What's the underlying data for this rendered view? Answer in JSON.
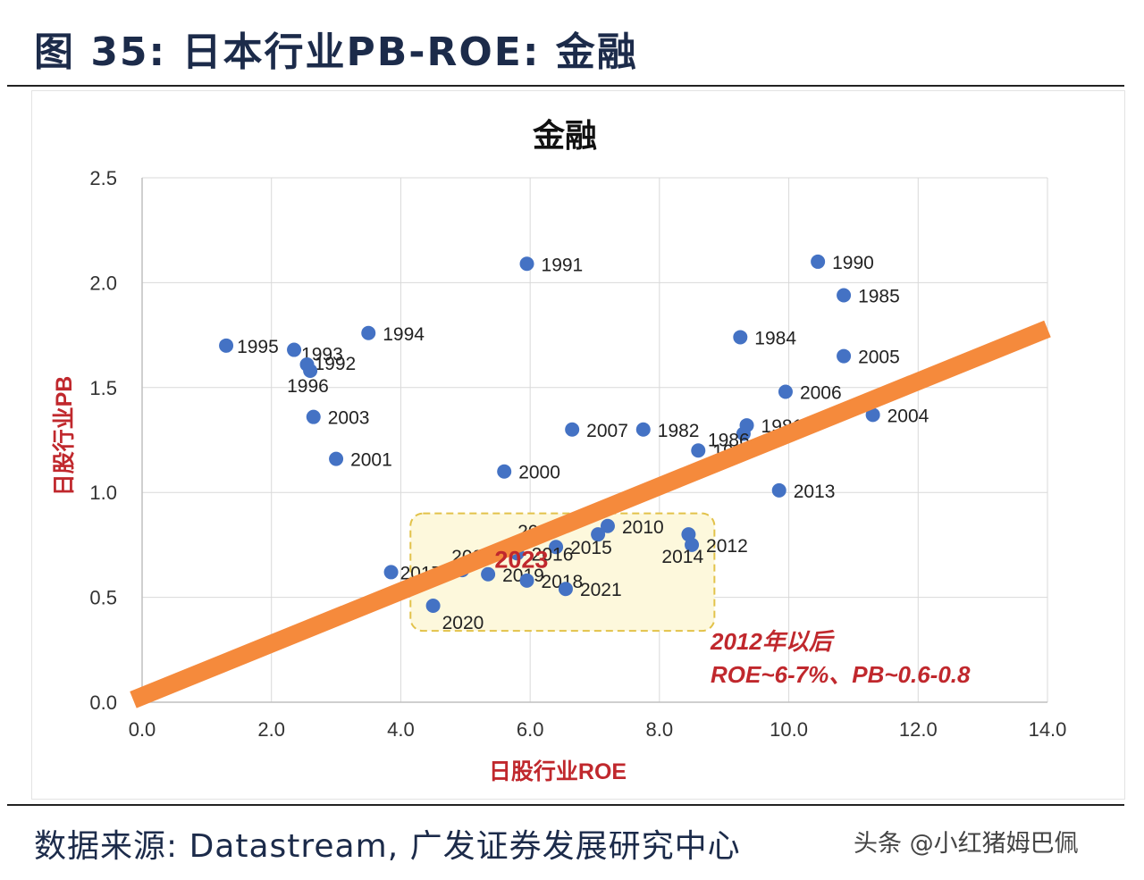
{
  "figure_title": "图  35:  日本行业PB-ROE:  金融",
  "source_text": "数据来源:  Datastream,  广发证券发展研究中心",
  "watermark_text": "头条 @小红猪姆巴佩",
  "colors": {
    "point": "#4472c4",
    "trend": "#f58a3c",
    "highlight_border": "#e2c24a",
    "highlight_fill": "#fdf8dc",
    "annotation": "#c0282d",
    "axis_label": "#c0282d",
    "grid": "#d9d9d9"
  },
  "chart_data": {
    "type": "scatter",
    "title": "金融",
    "xlabel": "日股行业ROE",
    "ylabel": "日股行业PB",
    "xlim": [
      0,
      14
    ],
    "ylim": [
      0,
      2.5
    ],
    "x_ticks": [
      "0.0",
      "2.0",
      "4.0",
      "6.0",
      "8.0",
      "10.0",
      "12.0",
      "14.0"
    ],
    "y_ticks": [
      "0.0",
      "0.5",
      "1.0",
      "1.5",
      "2.0",
      "2.5"
    ],
    "grid": true,
    "points": [
      {
        "label": "1995",
        "x": 1.3,
        "y": 1.7
      },
      {
        "label": "1993",
        "x": 2.35,
        "y": 1.68
      },
      {
        "label": "1992",
        "x": 2.55,
        "y": 1.61
      },
      {
        "label": "1996",
        "x": 2.6,
        "y": 1.58
      },
      {
        "label": "1994",
        "x": 3.5,
        "y": 1.76
      },
      {
        "label": "2003",
        "x": 2.65,
        "y": 1.36
      },
      {
        "label": "2001",
        "x": 3.0,
        "y": 1.16
      },
      {
        "label": "1991",
        "x": 5.95,
        "y": 2.09
      },
      {
        "label": "2000",
        "x": 5.6,
        "y": 1.1
      },
      {
        "label": "2007",
        "x": 6.65,
        "y": 1.3
      },
      {
        "label": "1982",
        "x": 7.75,
        "y": 1.3
      },
      {
        "label": "1983",
        "x": 8.6,
        "y": 1.2
      },
      {
        "label": "1990",
        "x": 10.45,
        "y": 2.1
      },
      {
        "label": "1985",
        "x": 10.85,
        "y": 1.94
      },
      {
        "label": "1984",
        "x": 9.25,
        "y": 1.74
      },
      {
        "label": "2005",
        "x": 10.85,
        "y": 1.65
      },
      {
        "label": "2006",
        "x": 9.95,
        "y": 1.48
      },
      {
        "label": "1981",
        "x": 9.35,
        "y": 1.32
      },
      {
        "label": "1986",
        "x": 9.3,
        "y": 1.28
      },
      {
        "label": "2004",
        "x": 11.3,
        "y": 1.37
      },
      {
        "label": "2013",
        "x": 9.85,
        "y": 1.01
      },
      {
        "label": "2012",
        "x": 8.5,
        "y": 0.75
      },
      {
        "label": "2014",
        "x": 8.45,
        "y": 0.8
      },
      {
        "label": "2010",
        "x": 7.2,
        "y": 0.84
      },
      {
        "label": "2009",
        "x": 7.05,
        "y": 0.8
      },
      {
        "label": "2015",
        "x": 6.4,
        "y": 0.74
      },
      {
        "label": "2016",
        "x": 5.8,
        "y": 0.71
      },
      {
        "label": "2022",
        "x": 4.95,
        "y": 0.63
      },
      {
        "label": "2019",
        "x": 5.35,
        "y": 0.61
      },
      {
        "label": "2018",
        "x": 5.95,
        "y": 0.58
      },
      {
        "label": "2021",
        "x": 6.55,
        "y": 0.54
      },
      {
        "label": "2017",
        "x": 3.85,
        "y": 0.62
      },
      {
        "label": "2020",
        "x": 4.5,
        "y": 0.46
      }
    ],
    "highlight_point": {
      "label": "2023"
    },
    "trend_line": {
      "x0": 0.0,
      "y0": 0.02,
      "x1": 14.0,
      "y1": 1.78
    },
    "annotation": {
      "line1": "2012年以后",
      "line2": "ROE~6-7%、PB~0.6-0.8"
    }
  }
}
